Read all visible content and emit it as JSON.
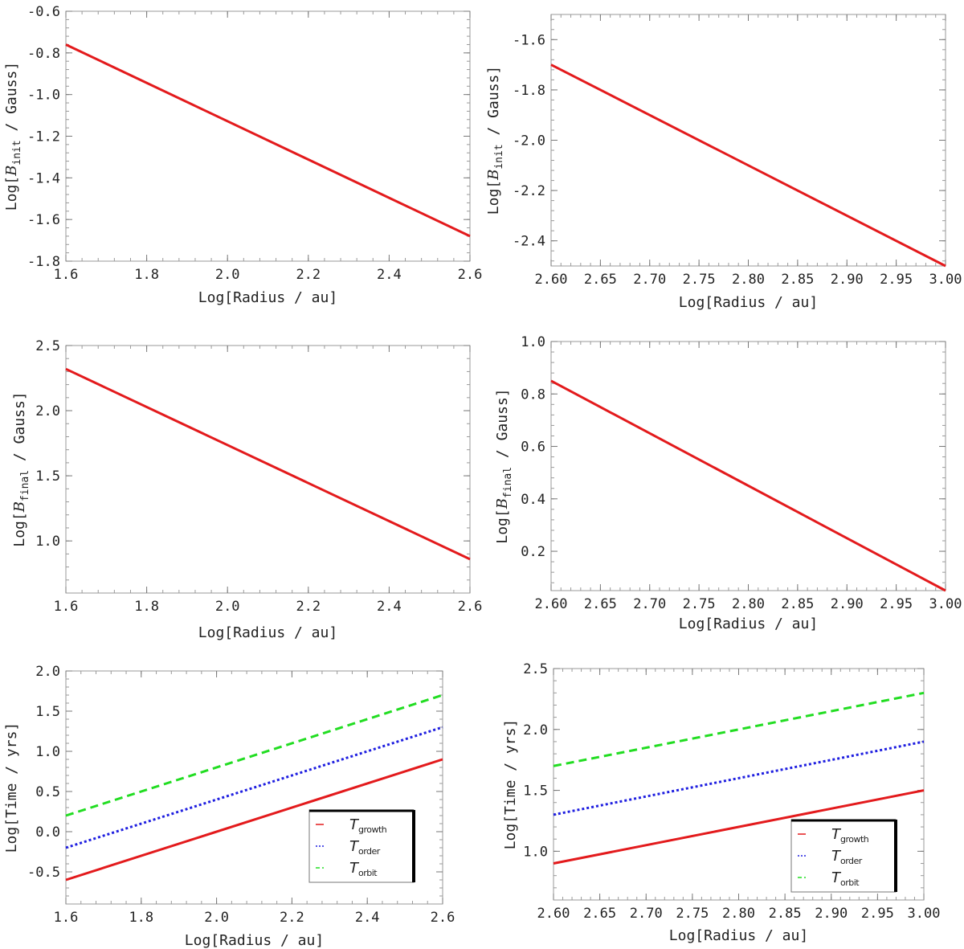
{
  "chart_data": [
    {
      "type": "line",
      "xlabel": "Log[Radius / au]",
      "ylabel": {
        "prefix": "Log[",
        "symbol": "B",
        "subscript": "init",
        "suffix": " / Gauss]"
      },
      "xlim": [
        1.6,
        2.6
      ],
      "ylim": [
        -1.8,
        -0.6
      ],
      "xticks": [
        "1.6",
        "1.8",
        "2.0",
        "2.2",
        "2.4",
        "2.6"
      ],
      "yticks": [
        "-1.8",
        "-1.6",
        "-1.4",
        "-1.2",
        "-1.0",
        "-0.8",
        "-0.6"
      ],
      "series": [
        {
          "name": "B_init",
          "color": "#e31a1c",
          "dash": "solid",
          "x": [
            1.6,
            2.6
          ],
          "y": [
            -0.76,
            -1.68
          ]
        }
      ]
    },
    {
      "type": "line",
      "xlabel": "Log[Radius / au]",
      "ylabel": {
        "prefix": "Log[",
        "symbol": "B",
        "subscript": "init",
        "suffix": " / Gauss]"
      },
      "xlim": [
        2.6,
        3.0
      ],
      "ylim": [
        -2.5,
        -1.5
      ],
      "xticks": [
        "2.60",
        "2.65",
        "2.70",
        "2.75",
        "2.80",
        "2.85",
        "2.90",
        "2.95",
        "3.00"
      ],
      "yticks": [
        "-2.4",
        "-2.2",
        "-2.0",
        "-1.8",
        "-1.6"
      ],
      "series": [
        {
          "name": "B_init",
          "color": "#e31a1c",
          "dash": "solid",
          "x": [
            2.6,
            3.0
          ],
          "y": [
            -1.7,
            -2.5
          ]
        }
      ]
    },
    {
      "type": "line",
      "xlabel": "Log[Radius / au]",
      "ylabel": {
        "prefix": "Log[",
        "symbol": "B",
        "subscript": "final",
        "suffix": " / Gauss]"
      },
      "xlim": [
        1.6,
        2.6
      ],
      "ylim": [
        0.6,
        2.5
      ],
      "xticks": [
        "1.6",
        "1.8",
        "2.0",
        "2.2",
        "2.4",
        "2.6"
      ],
      "yticks": [
        "1.0",
        "1.5",
        "2.0",
        "2.5"
      ],
      "series": [
        {
          "name": "B_final",
          "color": "#e31a1c",
          "dash": "solid",
          "x": [
            1.6,
            2.6
          ],
          "y": [
            2.32,
            0.86
          ]
        }
      ]
    },
    {
      "type": "line",
      "xlabel": "Log[Radius / au]",
      "ylabel": {
        "prefix": "Log[",
        "symbol": "B",
        "subscript": "final",
        "suffix": " / Gauss]"
      },
      "xlim": [
        2.6,
        3.0
      ],
      "ylim": [
        0.05,
        1.0
      ],
      "xticks": [
        "2.60",
        "2.65",
        "2.70",
        "2.75",
        "2.80",
        "2.85",
        "2.90",
        "2.95",
        "3.00"
      ],
      "yticks": [
        "0.2",
        "0.4",
        "0.6",
        "0.8",
        "1.0"
      ],
      "series": [
        {
          "name": "B_final",
          "color": "#e31a1c",
          "dash": "solid",
          "x": [
            2.6,
            3.0
          ],
          "y": [
            0.85,
            0.05
          ]
        }
      ]
    },
    {
      "type": "line",
      "xlabel": "Log[Radius / au]",
      "ylabel": {
        "prefix": "Log[Time / yrs]",
        "symbol": "",
        "subscript": "",
        "suffix": ""
      },
      "xlim": [
        1.6,
        2.6
      ],
      "ylim": [
        -0.9,
        2.0
      ],
      "xticks": [
        "1.6",
        "1.8",
        "2.0",
        "2.2",
        "2.4",
        "2.6"
      ],
      "yticks": [
        "-0.5",
        "0.0",
        "0.5",
        "1.0",
        "1.5",
        "2.0"
      ],
      "series": [
        {
          "name": "T_growth",
          "color": "#e31a1c",
          "dash": "solid",
          "x": [
            1.6,
            2.6
          ],
          "y": [
            -0.6,
            0.9
          ]
        },
        {
          "name": "T_order",
          "color": "#1f1fe0",
          "dash": "dotted",
          "x": [
            1.6,
            2.6
          ],
          "y": [
            -0.2,
            1.3
          ]
        },
        {
          "name": "T_orbit",
          "color": "#22dd22",
          "dash": "dashed",
          "x": [
            1.6,
            2.6
          ],
          "y": [
            0.2,
            1.7
          ]
        }
      ],
      "legend": {
        "placement": "bottom-right",
        "entries": [
          {
            "symbol": "T",
            "subscript": "growth",
            "color": "#e31a1c",
            "dash": "solid"
          },
          {
            "symbol": "T",
            "subscript": "order",
            "color": "#1f1fe0",
            "dash": "dotted"
          },
          {
            "symbol": "T",
            "subscript": "orbit",
            "color": "#22dd22",
            "dash": "dashed"
          }
        ]
      }
    },
    {
      "type": "line",
      "xlabel": "Log[Radius / au]",
      "ylabel": {
        "prefix": "Log[Time / yrs]",
        "symbol": "",
        "subscript": "",
        "suffix": ""
      },
      "xlim": [
        2.6,
        3.0
      ],
      "ylim": [
        0.6,
        2.5
      ],
      "xticks": [
        "2.60",
        "2.65",
        "2.70",
        "2.75",
        "2.80",
        "2.85",
        "2.90",
        "2.95",
        "3.00"
      ],
      "yticks": [
        "1.0",
        "1.5",
        "2.0",
        "2.5"
      ],
      "series": [
        {
          "name": "T_growth",
          "color": "#e31a1c",
          "dash": "solid",
          "x": [
            2.6,
            3.0
          ],
          "y": [
            0.9,
            1.5
          ]
        },
        {
          "name": "T_order",
          "color": "#1f1fe0",
          "dash": "dotted",
          "x": [
            2.6,
            3.0
          ],
          "y": [
            1.3,
            1.9
          ]
        },
        {
          "name": "T_orbit",
          "color": "#22dd22",
          "dash": "dashed",
          "x": [
            2.6,
            3.0
          ],
          "y": [
            1.7,
            2.3
          ]
        }
      ],
      "legend": {
        "placement": "bottom-right",
        "entries": [
          {
            "symbol": "T",
            "subscript": "growth",
            "color": "#e31a1c",
            "dash": "solid"
          },
          {
            "symbol": "T",
            "subscript": "order",
            "color": "#1f1fe0",
            "dash": "dotted"
          },
          {
            "symbol": "T",
            "subscript": "orbit",
            "color": "#22dd22",
            "dash": "dashed"
          }
        ]
      }
    }
  ]
}
